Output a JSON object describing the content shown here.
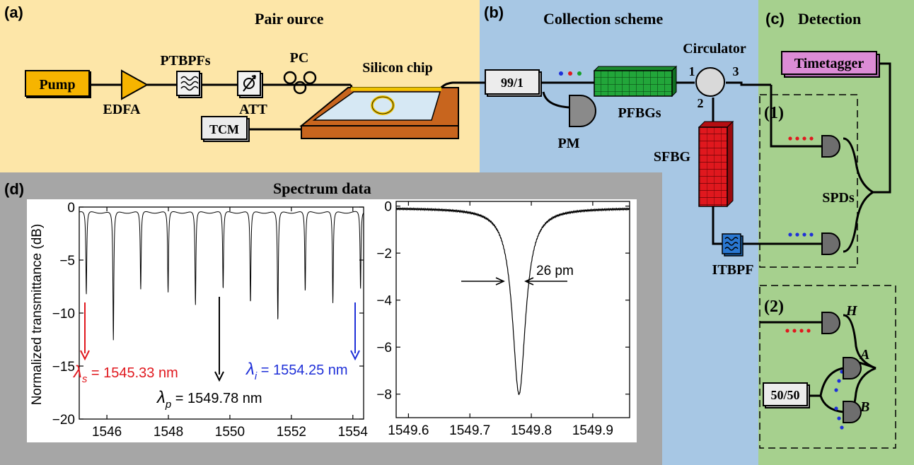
{
  "panels": {
    "a": {
      "tag": "(a)",
      "title": "Pair  ource"
    },
    "b": {
      "tag": "(b)",
      "title": "Collection scheme"
    },
    "c": {
      "tag": "(c)",
      "title": "Detection"
    },
    "d": {
      "tag": "(d)",
      "title": "Spectrum data"
    }
  },
  "components": {
    "pump": "Pump",
    "edfa": "EDFA",
    "ptbpfs": "PTBPFs",
    "att": "ATT",
    "pc": "PC",
    "chip": "Silicon chip",
    "tcm": "TCM",
    "splitter": "99/1",
    "pm": "PM",
    "pfbgs": "PFBGs",
    "circulator": "Circulator",
    "port1": "1",
    "port2": "2",
    "port3": "3",
    "sfbg": "SFBG",
    "itbpf": "ITBPF",
    "timetagger": "Timetagger",
    "spds": "SPDs",
    "box1": "(1)",
    "box2": "(2)",
    "bs": "50/50",
    "h": "H",
    "a": "A",
    "b": "B"
  },
  "colors": {
    "panel_a": "#fde6a8",
    "panel_b": "#a7c7e4",
    "panel_c": "#a6d08e",
    "panel_d": "#a6a6a6",
    "pump": "#f6b400",
    "copper": "#c8651e",
    "pfbg": "#22a63a",
    "sfbg": "#e0181e",
    "itbpf": "#2a78d2",
    "timetagger": "#dc8cd6",
    "signal": "#e0181e",
    "idler": "#1f30d8",
    "green_dot": "#14a028"
  },
  "chart_data": [
    {
      "type": "line",
      "ylabel": "Normalized transmittance (dB)",
      "xlim": [
        1545.1,
        1554.35
      ],
      "ylim": [
        -20,
        0
      ],
      "xticks": [
        1546,
        1548,
        1550,
        1552,
        1554
      ],
      "yticks": [
        0,
        -5,
        -10,
        -15,
        -20
      ],
      "xtick_labels": [
        "1546",
        "1548",
        "1550",
        "1552",
        "1554"
      ],
      "ytick_labels": [
        "0",
        "−5",
        "−10",
        "−15",
        "−20"
      ],
      "dips": [
        {
          "x": 1545.33,
          "depth": -8.5
        },
        {
          "x": 1546.21,
          "depth": -12.8
        },
        {
          "x": 1547.1,
          "depth": -8.0
        },
        {
          "x": 1547.99,
          "depth": -8.3
        },
        {
          "x": 1548.88,
          "depth": -9.5
        },
        {
          "x": 1549.78,
          "depth": -8.0
        },
        {
          "x": 1550.67,
          "depth": -9.3
        },
        {
          "x": 1551.56,
          "depth": -11.0
        },
        {
          "x": 1552.45,
          "depth": -8.2
        },
        {
          "x": 1553.35,
          "depth": -9.3
        },
        {
          "x": 1554.25,
          "depth": -8.0
        }
      ],
      "annotations": {
        "signal": {
          "sym": "λ",
          "sub": "s",
          "text": " = 1545.33 nm"
        },
        "pump": {
          "sym": "λ",
          "sub": "p",
          "text": " = 1549.78 nm"
        },
        "idler": {
          "sym": "λ",
          "sub": "i",
          "text": " = 1554.25 nm"
        }
      }
    },
    {
      "type": "line",
      "xlim": [
        1549.58,
        1549.96
      ],
      "ylim": [
        -9,
        0.2
      ],
      "xticks": [
        1549.6,
        1549.7,
        1549.8,
        1549.9
      ],
      "yticks": [
        0,
        -2,
        -4,
        -6,
        -8
      ],
      "xtick_labels": [
        "1549.6",
        "1549.7",
        "1549.8",
        "1549.9"
      ],
      "ytick_labels": [
        "0",
        "−2",
        "−4",
        "−6",
        "−8"
      ],
      "dip": {
        "x": 1549.78,
        "depth": -8.0,
        "fwhm_pm": 26
      },
      "annotations": {
        "width": "26 pm"
      }
    }
  ]
}
